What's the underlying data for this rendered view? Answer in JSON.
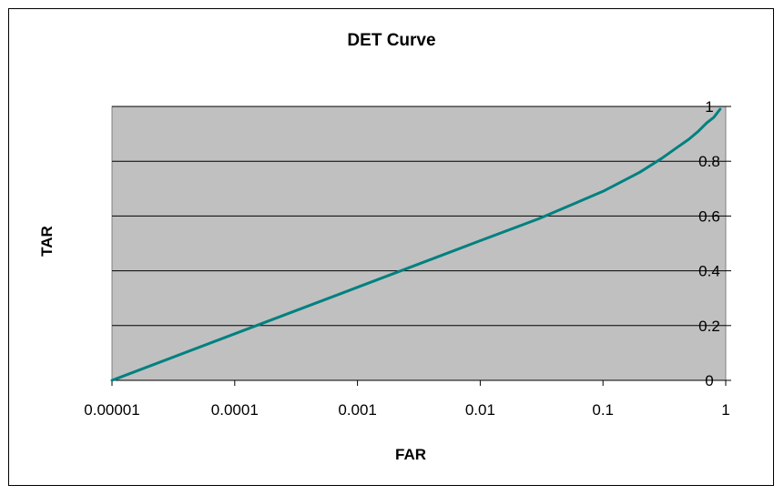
{
  "chart_data": {
    "type": "line",
    "title": "DET Curve",
    "xlabel": "FAR",
    "ylabel": "TAR",
    "x_scale": "log",
    "xlim": [
      1e-05,
      1
    ],
    "ylim": [
      0,
      1
    ],
    "x_ticks": [
      "0.00001",
      "0.0001",
      "0.001",
      "0.01",
      "0.1",
      "1"
    ],
    "y_ticks": [
      "0",
      "0.2",
      "0.4",
      "0.6",
      "0.8",
      "1"
    ],
    "grid": "horizontal",
    "legend": "none",
    "series": [
      {
        "x": [
          1e-05,
          0.0001,
          0.001,
          0.01,
          0.03,
          0.1,
          0.2,
          0.3,
          0.4,
          0.5,
          0.6,
          0.7,
          0.8,
          0.9
        ],
        "y": [
          0.0,
          0.17,
          0.34,
          0.51,
          0.59,
          0.69,
          0.76,
          0.81,
          0.85,
          0.88,
          0.91,
          0.94,
          0.96,
          0.99
        ]
      }
    ]
  },
  "colors": {
    "plot_background": "#c0c0c0",
    "line": "#008080",
    "grid": "#000000",
    "frame_border": "#000000"
  }
}
